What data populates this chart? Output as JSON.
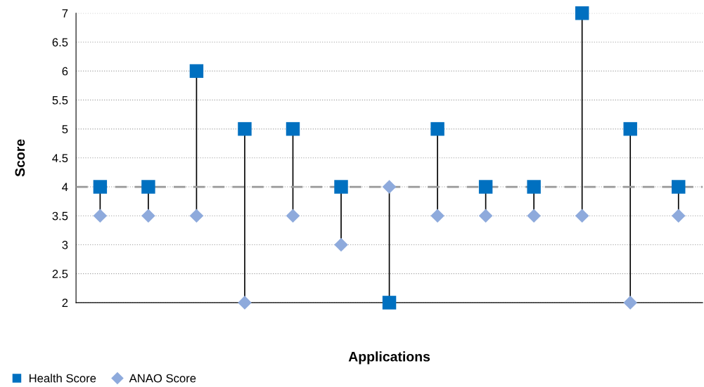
{
  "chart_data": {
    "type": "scatter",
    "xlabel": "Applications",
    "ylabel": "Score",
    "categories": [
      null,
      null,
      null,
      null,
      null,
      null,
      null,
      null,
      null,
      null,
      null,
      null,
      null
    ],
    "series": [
      {
        "name": "Health Score",
        "color": "#0070c0",
        "marker": "square",
        "values": [
          4,
          4,
          6,
          5,
          5,
          4,
          2,
          5,
          4,
          4,
          7,
          5,
          4
        ]
      },
      {
        "name": "ANAO Score",
        "color": "#8eaadc",
        "marker": "diamond",
        "values": [
          3.5,
          3.5,
          3.5,
          2,
          3.5,
          3,
          4,
          3.5,
          3.5,
          3.5,
          3.5,
          2,
          3.5
        ]
      }
    ],
    "ylim": [
      2,
      7
    ],
    "yticks": [
      2,
      2.5,
      3,
      3.5,
      4,
      4.5,
      5,
      5.5,
      6,
      6.5,
      7
    ],
    "ref_lines": [
      {
        "axis": "y",
        "value": 4,
        "color": "#999999",
        "line_style": "dashed"
      }
    ],
    "grid": "y",
    "legend": "bottom left",
    "tick_labels": "y"
  }
}
